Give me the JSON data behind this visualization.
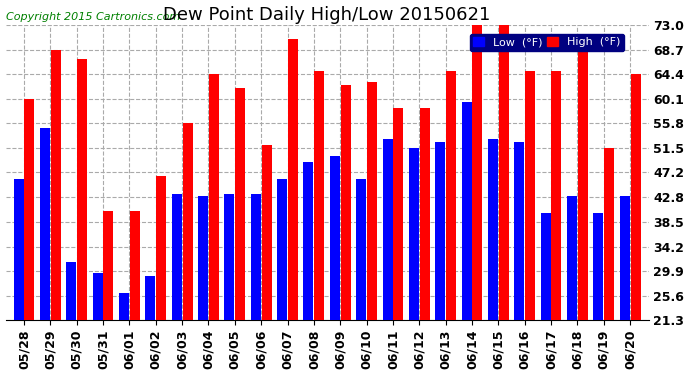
{
  "title": "Dew Point Daily High/Low 20150621",
  "copyright": "Copyright 2015 Cartronics.com",
  "yticks": [
    21.3,
    25.6,
    29.9,
    34.2,
    38.5,
    42.8,
    47.2,
    51.5,
    55.8,
    60.1,
    64.4,
    68.7,
    73.0
  ],
  "ylim": [
    21.3,
    73.0
  ],
  "dates": [
    "05/28",
    "05/29",
    "05/30",
    "05/31",
    "06/01",
    "06/02",
    "06/03",
    "06/04",
    "06/05",
    "06/06",
    "06/07",
    "06/08",
    "06/09",
    "06/10",
    "06/11",
    "06/12",
    "06/13",
    "06/14",
    "06/15",
    "06/16",
    "06/17",
    "06/18",
    "06/19",
    "06/20"
  ],
  "low_values": [
    46.0,
    55.0,
    31.5,
    29.5,
    26.0,
    29.0,
    43.5,
    43.0,
    43.5,
    43.5,
    46.0,
    49.0,
    50.0,
    46.0,
    53.0,
    51.5,
    52.5,
    59.5,
    53.0,
    52.5,
    40.0,
    43.0,
    40.0,
    43.0
  ],
  "high_values": [
    60.1,
    68.7,
    67.0,
    40.5,
    40.5,
    46.5,
    55.8,
    64.4,
    62.0,
    52.0,
    70.5,
    65.0,
    62.5,
    63.0,
    58.5,
    58.5,
    65.0,
    73.0,
    73.5,
    65.0,
    65.0,
    70.5,
    51.5,
    64.4
  ],
  "low_color": "#0000ff",
  "high_color": "#ff0000",
  "bg_color": "#ffffff",
  "grid_color": "#aaaaaa",
  "title_fontsize": 13,
  "copyright_fontsize": 8,
  "tick_fontsize": 9,
  "bar_bottom": 21.3
}
